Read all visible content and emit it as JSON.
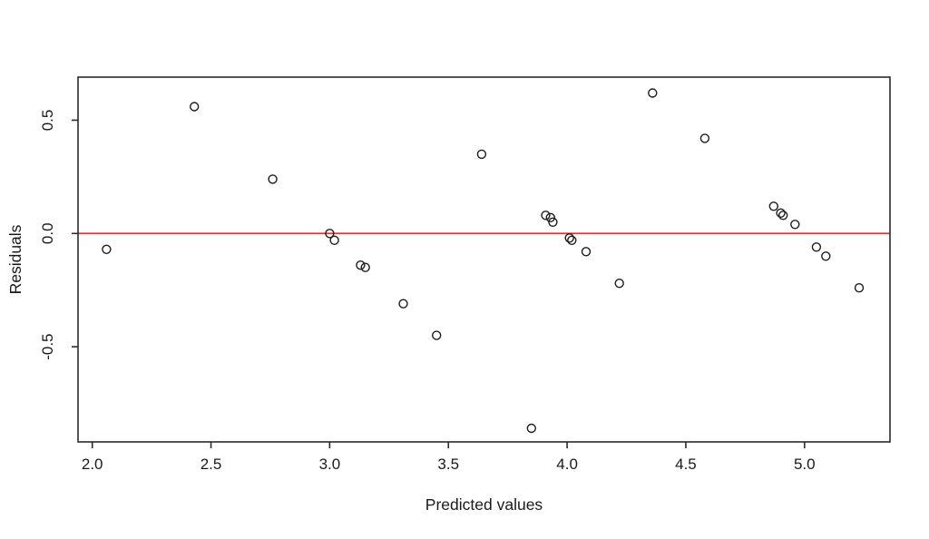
{
  "figure": {
    "background": "#ffffff"
  },
  "chart_data": {
    "type": "scatter",
    "title": "",
    "xlabel": "Predicted values",
    "ylabel": "Residuals",
    "xlim": [
      1.94,
      5.36
    ],
    "ylim": [
      -0.92,
      0.69
    ],
    "x_ticks": [
      2.0,
      2.5,
      3.0,
      3.5,
      4.0,
      4.5,
      5.0
    ],
    "x_tick_labels": [
      "2.0",
      "2.5",
      "3.0",
      "3.5",
      "4.0",
      "4.5",
      "5.0"
    ],
    "y_ticks": [
      -0.5,
      0.0,
      0.5
    ],
    "y_tick_labels": [
      "-0.5",
      "0.0",
      "0.5"
    ],
    "grid": false,
    "legend": null,
    "marker": "open-circle",
    "marker_color": "#1c1c1c",
    "box_color": "#2b2b2b",
    "zero_line": {
      "y": 0.0,
      "color": "#ee2f2f"
    },
    "points": [
      [
        2.06,
        -0.07
      ],
      [
        2.43,
        0.56
      ],
      [
        2.76,
        0.24
      ],
      [
        3.0,
        0.0
      ],
      [
        3.02,
        -0.03
      ],
      [
        3.13,
        -0.14
      ],
      [
        3.15,
        -0.15
      ],
      [
        3.31,
        -0.31
      ],
      [
        3.45,
        -0.45
      ],
      [
        3.64,
        0.35
      ],
      [
        3.85,
        -0.86
      ],
      [
        3.91,
        0.08
      ],
      [
        3.93,
        0.07
      ],
      [
        3.94,
        0.05
      ],
      [
        4.01,
        -0.02
      ],
      [
        4.02,
        -0.03
      ],
      [
        4.08,
        -0.08
      ],
      [
        4.22,
        -0.22
      ],
      [
        4.36,
        0.62
      ],
      [
        4.58,
        0.42
      ],
      [
        4.87,
        0.12
      ],
      [
        4.9,
        0.09
      ],
      [
        4.91,
        0.08
      ],
      [
        4.96,
        0.04
      ],
      [
        5.05,
        -0.06
      ],
      [
        5.09,
        -0.1
      ],
      [
        5.23,
        -0.24
      ]
    ]
  }
}
